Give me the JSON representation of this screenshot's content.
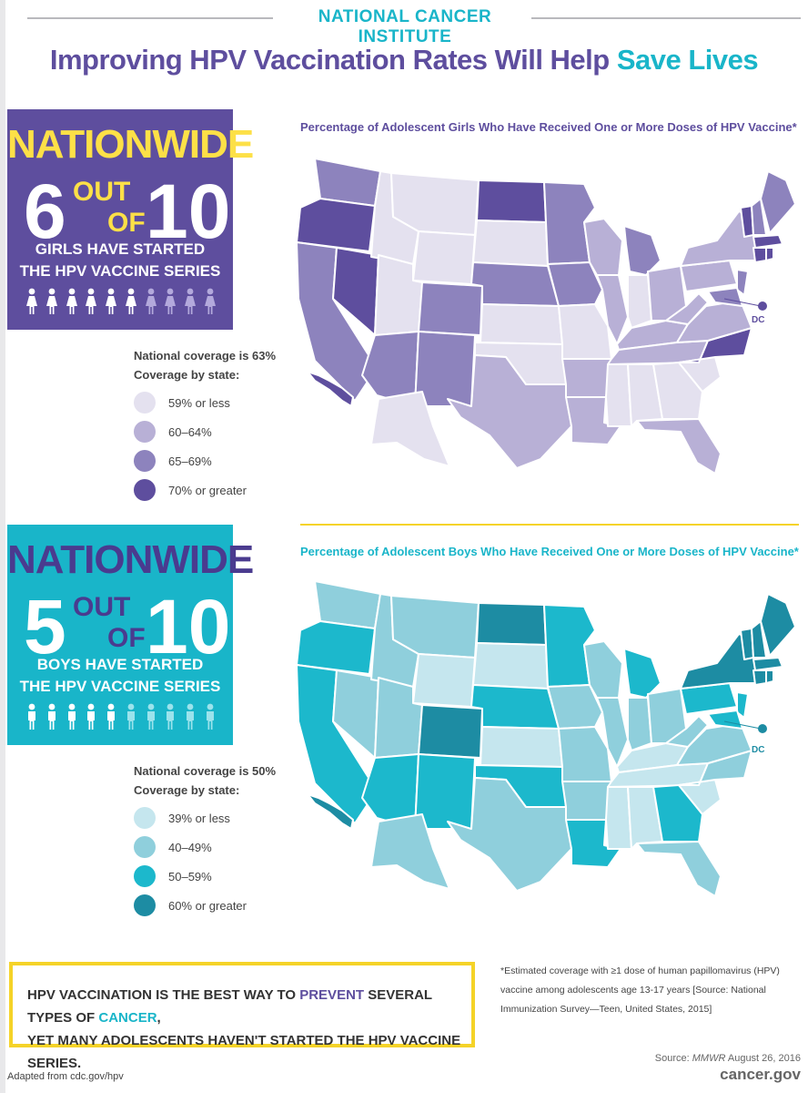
{
  "header": {
    "org": "NATIONAL CANCER INSTITUTE",
    "title_main": "Improving HPV Vaccination Rates Will Help ",
    "title_accent": "Save Lives"
  },
  "colors": {
    "purple": "#5e4e9e",
    "teal": "#19b5c9",
    "yellow": "#f5d328"
  },
  "girls": {
    "nationwide": "NATIONWIDE",
    "count": "6",
    "out": "OUT",
    "of": "OF",
    "total": "10",
    "caption_line1": "GIRLS HAVE STARTED",
    "caption_line2": "THE HPV VACCINE SERIES",
    "icons": {
      "name": "girl-icon",
      "filled": 6,
      "total": 10
    },
    "map_title": "Percentage of Adolescent Girls Who Have Received One or More Doses of HPV Vaccine*",
    "national_coverage": "National coverage is 63%",
    "coverage_by_state": "Coverage by state:",
    "legend": [
      {
        "label": "59% or less",
        "color": "#e4e1ef"
      },
      {
        "label": "60–64%",
        "color": "#b8b0d6"
      },
      {
        "label": "65–69%",
        "color": "#8d83bd"
      },
      {
        "label": "70% or greater",
        "color": "#5e4e9e"
      }
    ],
    "dc_label": "DC"
  },
  "boys": {
    "nationwide": "NATIONWIDE",
    "count": "5",
    "out": "OUT",
    "of": "OF",
    "total": "10",
    "caption_line1": "BOYS HAVE STARTED",
    "caption_line2": "THE HPV VACCINE SERIES",
    "icons": {
      "name": "boy-icon",
      "filled": 5,
      "total": 10
    },
    "map_title": "Percentage of Adolescent Boys Who Have Received One or More Doses of HPV Vaccine*",
    "national_coverage": "National coverage is 50%",
    "coverage_by_state": "Coverage by state:",
    "legend": [
      {
        "label": "39% or less",
        "color": "#c5e6ee"
      },
      {
        "label": "40–49%",
        "color": "#8fcfdc"
      },
      {
        "label": "50–59%",
        "color": "#1cb8cc"
      },
      {
        "label": "60% or greater",
        "color": "#1d8ca3"
      }
    ],
    "dc_label": "DC"
  },
  "callout": {
    "part1": "HPV VACCINATION IS THE BEST WAY TO ",
    "prevent": "PREVENT",
    "part2": " SEVERAL TYPES OF ",
    "cancer": "CANCER",
    "part3": ",",
    "line2": "YET MANY ADOLESCENTS HAVEN'T STARTED THE HPV VACCINE SERIES."
  },
  "footnote": "*Estimated coverage with ≥1 dose of human papillomavirus (HPV) vaccine among adolescents age 13-17 years [Source: National Immunization Survey—Teen, United States, 2015]",
  "footer": {
    "adapted": "Adapted from cdc.gov/hpv",
    "source_prefix": "Source: ",
    "source_pub": "MMWR",
    "source_date": " August 26, 2016",
    "site": "cancer.gov"
  }
}
